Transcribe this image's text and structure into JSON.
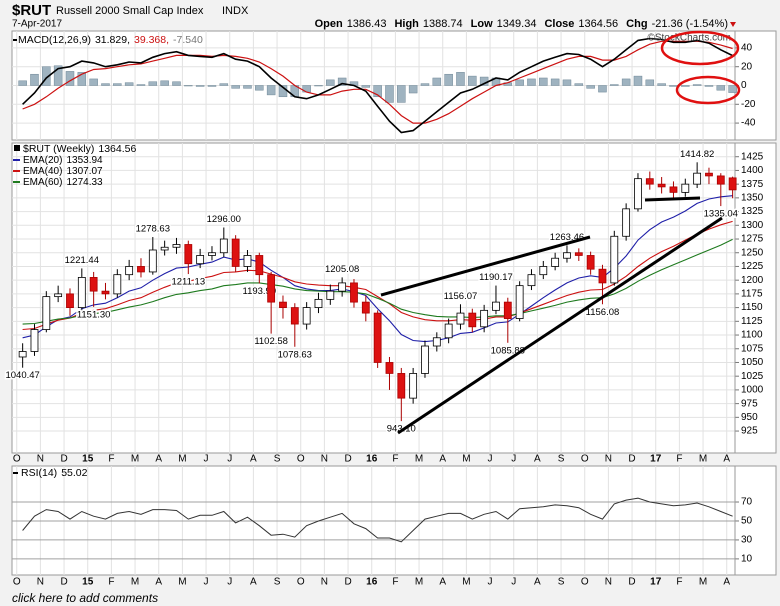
{
  "header": {
    "symbol": "$RUT",
    "name": "Russell 2000 Small Cap Index",
    "exchange": "INDX",
    "date": "7-Apr-2017",
    "quote": [
      {
        "label": "Open",
        "value": 1386.43
      },
      {
        "label": "High",
        "value": 1388.74
      },
      {
        "label": "Low",
        "value": 1349.34
      },
      {
        "label": "Close",
        "value": 1364.56
      },
      {
        "label": "Chg",
        "value": "-21.36 (-1.54%)"
      }
    ]
  },
  "watermark": "©StockCharts.com",
  "footer": {
    "link": "click here to add comments"
  },
  "chart_data": {
    "type": "candlestick",
    "grid": true,
    "xlim": [
      -0.2,
      30.35
    ],
    "xticks": [
      {
        "value": 0,
        "label": "O"
      },
      {
        "value": 1,
        "label": "N"
      },
      {
        "value": 2,
        "label": "D"
      },
      {
        "value": 3,
        "label": "15"
      },
      {
        "value": 4,
        "label": "F"
      },
      {
        "value": 5,
        "label": "M"
      },
      {
        "value": 6,
        "label": "A"
      },
      {
        "value": 7,
        "label": "M"
      },
      {
        "value": 8,
        "label": "J"
      },
      {
        "value": 9,
        "label": "J"
      },
      {
        "value": 10,
        "label": "A"
      },
      {
        "value": 11,
        "label": "S"
      },
      {
        "value": 12,
        "label": "O"
      },
      {
        "value": 13,
        "label": "N"
      },
      {
        "value": 14,
        "label": "D"
      },
      {
        "value": 15,
        "label": "16"
      },
      {
        "value": 16,
        "label": "F"
      },
      {
        "value": 17,
        "label": "M"
      },
      {
        "value": 18,
        "label": "A"
      },
      {
        "value": 19,
        "label": "M"
      },
      {
        "value": 20,
        "label": "J"
      },
      {
        "value": 21,
        "label": "J"
      },
      {
        "value": 22,
        "label": "A"
      },
      {
        "value": 23,
        "label": "S"
      },
      {
        "value": 24,
        "label": "O"
      },
      {
        "value": 25,
        "label": "N"
      },
      {
        "value": 26,
        "label": "D"
      },
      {
        "value": 27,
        "label": "17"
      },
      {
        "value": 28,
        "label": "F"
      },
      {
        "value": 29,
        "label": "M"
      },
      {
        "value": 30,
        "label": "A"
      }
    ],
    "x": [
      0.25,
      0.75,
      1.25,
      1.75,
      2.25,
      2.75,
      3.25,
      3.75,
      4.25,
      4.75,
      5.25,
      5.75,
      6.25,
      6.75,
      7.25,
      7.75,
      8.25,
      8.75,
      9.25,
      9.75,
      10.25,
      10.75,
      11.25,
      11.75,
      12.25,
      12.75,
      13.25,
      13.75,
      14.25,
      14.75,
      15.25,
      15.75,
      16.25,
      16.75,
      17.25,
      17.75,
      18.25,
      18.75,
      19.25,
      19.75,
      20.25,
      20.75,
      21.25,
      21.75,
      22.25,
      22.75,
      23.25,
      23.75,
      24.25,
      24.75,
      25.25,
      25.75,
      26.25,
      26.75,
      27.25,
      27.75,
      28.25,
      28.75,
      29.25,
      29.75,
      30.25
    ],
    "macd": {
      "legend": [
        "MACD(12,26,9)",
        "31.829,",
        "39.368,",
        "-7.540"
      ],
      "ylim": [
        -58,
        58
      ],
      "yticks": [
        40,
        20,
        0,
        -20,
        -40
      ],
      "line": {
        "color": "#000000",
        "values": [
          -20,
          -8,
          8,
          18,
          20,
          26,
          24,
          20,
          22,
          25,
          24,
          30,
          34,
          36,
          32,
          31,
          30,
          34,
          28,
          26,
          20,
          8,
          -2,
          -12,
          -14,
          -10,
          -4,
          2,
          0,
          -6,
          -22,
          -38,
          -50,
          -48,
          -38,
          -28,
          -18,
          -8,
          -4,
          2,
          8,
          6,
          14,
          20,
          26,
          30,
          34,
          33,
          28,
          20,
          28,
          38,
          48,
          50,
          49,
          46,
          46,
          48,
          45,
          38,
          31.829
        ]
      },
      "signal": {
        "color": "#cc1111",
        "values": [
          -25,
          -20,
          -12,
          -3,
          5,
          12,
          17,
          18,
          20,
          22,
          23,
          26,
          29,
          32,
          32,
          32,
          31,
          32,
          31,
          29,
          25,
          18,
          10,
          0,
          -7,
          -10,
          -10,
          -6,
          -4,
          -4,
          -10,
          -20,
          -32,
          -40,
          -40,
          -36,
          -30,
          -22,
          -14,
          -7,
          0,
          3,
          8,
          13,
          18,
          23,
          28,
          31,
          31,
          27,
          27,
          31,
          38,
          44,
          47,
          47,
          47,
          47,
          46,
          43,
          39.368
        ]
      },
      "histogram": {
        "color": "#9fb3c0",
        "values": [
          5,
          12,
          20,
          21,
          15,
          14,
          7,
          2,
          2,
          3,
          1,
          4,
          5,
          4,
          0,
          -1,
          -1,
          2,
          -3,
          -3,
          -5,
          -10,
          -12,
          -12,
          -7,
          0,
          6,
          8,
          4,
          -2,
          -12,
          -18,
          -18,
          -8,
          2,
          8,
          12,
          14,
          10,
          9,
          8,
          3,
          6,
          7,
          8,
          7,
          6,
          2,
          -3,
          -7,
          1,
          7,
          10,
          6,
          2,
          -1,
          -1,
          1,
          -1,
          -5,
          -7.54
        ]
      }
    },
    "price": {
      "title": "$RUT (Weekly)",
      "ylim": [
        885,
        1450
      ],
      "yticks": [
        925,
        950,
        975,
        1000,
        1025,
        1050,
        1075,
        1100,
        1125,
        1150,
        1175,
        1200,
        1225,
        1250,
        1275,
        1300,
        1325,
        1350,
        1375,
        1400,
        1425
      ],
      "up_color": "#ffffff",
      "down_color": "#dd1111",
      "open": [
        1060,
        1070,
        1110,
        1170,
        1175,
        1150,
        1205,
        1180,
        1175,
        1210,
        1225,
        1215,
        1255,
        1260,
        1265,
        1230,
        1245,
        1250,
        1275,
        1225,
        1245,
        1210,
        1160,
        1150,
        1120,
        1150,
        1165,
        1180,
        1195,
        1160,
        1140,
        1050,
        1030,
        985,
        1030,
        1080,
        1095,
        1120,
        1140,
        1115,
        1145,
        1160,
        1130,
        1190,
        1210,
        1225,
        1240,
        1250,
        1245,
        1220,
        1195,
        1280,
        1330,
        1385,
        1375,
        1370,
        1360,
        1375,
        1395,
        1390,
        1386.43
      ],
      "high": [
        1085,
        1120,
        1180,
        1190,
        1185,
        1221.44,
        1215,
        1195,
        1220,
        1237,
        1240,
        1278.63,
        1272,
        1277,
        1272,
        1257,
        1262,
        1296,
        1282,
        1255,
        1250,
        1215,
        1172,
        1158,
        1160,
        1177,
        1192,
        1205.08,
        1202,
        1172,
        1145,
        1060,
        1040,
        1040,
        1090,
        1105,
        1130,
        1156.07,
        1148,
        1155,
        1190.17,
        1168,
        1198,
        1220,
        1235,
        1250,
        1263.46,
        1258,
        1252,
        1228,
        1290,
        1340,
        1395,
        1398,
        1388,
        1380,
        1385,
        1414.82,
        1405,
        1395,
        1388.74
      ],
      "low": [
        1040.47,
        1062,
        1105,
        1160,
        1135,
        1145,
        1151.3,
        1165,
        1168,
        1200,
        1205,
        1210,
        1245,
        1248,
        1211.13,
        1222,
        1236,
        1242,
        1215,
        1215,
        1193.99,
        1102.58,
        1130,
        1078.63,
        1110,
        1140,
        1155,
        1170,
        1150,
        1125,
        1040,
        1000,
        943.1,
        975,
        1022,
        1070,
        1085,
        1110,
        1105,
        1105,
        1138,
        1085.88,
        1125,
        1182,
        1202,
        1218,
        1232,
        1235,
        1210,
        1156.08,
        1190,
        1272,
        1325,
        1365,
        1358,
        1350,
        1352,
        1368,
        1375,
        1335.04,
        1349.34
      ],
      "close": [
        1070,
        1110,
        1170,
        1175,
        1150,
        1205,
        1180,
        1175,
        1210,
        1225,
        1215,
        1255,
        1260,
        1265,
        1230,
        1245,
        1250,
        1275,
        1225,
        1245,
        1210,
        1160,
        1150,
        1120,
        1150,
        1165,
        1180,
        1195,
        1160,
        1140,
        1050,
        1030,
        985,
        1030,
        1080,
        1095,
        1120,
        1140,
        1115,
        1145,
        1160,
        1130,
        1190,
        1210,
        1225,
        1240,
        1250,
        1245,
        1220,
        1195,
        1280,
        1330,
        1385,
        1375,
        1370,
        1360,
        1375,
        1395,
        1390,
        1375,
        1364.56
      ],
      "high_labels": [
        null,
        null,
        null,
        null,
        null,
        "1221.44",
        null,
        null,
        null,
        null,
        null,
        "1278.63",
        null,
        null,
        null,
        null,
        null,
        "1296.00",
        null,
        null,
        null,
        null,
        null,
        null,
        null,
        null,
        null,
        "1205.08",
        null,
        null,
        null,
        null,
        null,
        null,
        null,
        null,
        null,
        "1156.07",
        null,
        null,
        "1190.17",
        null,
        null,
        null,
        null,
        null,
        "1263.46",
        null,
        null,
        null,
        null,
        null,
        null,
        null,
        null,
        null,
        null,
        "1414.82",
        null,
        null,
        null
      ],
      "low_labels": [
        "1040.47",
        null,
        null,
        null,
        null,
        null,
        "1151.30",
        null,
        null,
        null,
        null,
        null,
        null,
        null,
        "1211.13",
        null,
        null,
        null,
        null,
        null,
        "1193.99",
        "1102.58",
        null,
        "1078.63",
        null,
        null,
        null,
        null,
        null,
        null,
        null,
        null,
        "943.10",
        null,
        null,
        null,
        null,
        null,
        null,
        null,
        null,
        "1085.88",
        null,
        null,
        null,
        null,
        null,
        null,
        null,
        "1156.08",
        null,
        null,
        null,
        null,
        null,
        null,
        null,
        null,
        null,
        "1335.04",
        null
      ],
      "series": [
        {
          "name": "EMA(20)",
          "color": "#1f1fa8",
          "values": [
            1095,
            1100,
            1115,
            1128,
            1133,
            1148,
            1155,
            1158,
            1168,
            1180,
            1186,
            1200,
            1212,
            1222,
            1224,
            1229,
            1233,
            1242,
            1237,
            1239,
            1233,
            1218,
            1205,
            1190,
            1184,
            1181,
            1181,
            1184,
            1179,
            1172,
            1148,
            1126,
            1101,
            1090,
            1088,
            1090,
            1095,
            1103,
            1105,
            1113,
            1122,
            1124,
            1138,
            1153,
            1168,
            1182,
            1195,
            1204,
            1208,
            1205,
            1222,
            1244,
            1273,
            1292,
            1306,
            1315,
            1326,
            1340,
            1348,
            1352,
            1353.94
          ]
        },
        {
          "name": "EMA(40)",
          "color": "#cc1111",
          "values": [
            1110,
            1112,
            1120,
            1127,
            1131,
            1140,
            1145,
            1148,
            1155,
            1163,
            1168,
            1178,
            1187,
            1195,
            1198,
            1203,
            1207,
            1214,
            1215,
            1218,
            1217,
            1211,
            1205,
            1197,
            1193,
            1191,
            1190,
            1190,
            1187,
            1183,
            1170,
            1157,
            1141,
            1133,
            1128,
            1126,
            1126,
            1128,
            1127,
            1129,
            1133,
            1133,
            1140,
            1148,
            1156,
            1164,
            1172,
            1178,
            1182,
            1183,
            1193,
            1207,
            1225,
            1240,
            1252,
            1262,
            1273,
            1284,
            1293,
            1301,
            1307.07
          ]
        },
        {
          "name": "EMA(60)",
          "color": "#1e7a1e",
          "values": [
            1120,
            1121,
            1125,
            1129,
            1131,
            1136,
            1139,
            1141,
            1146,
            1151,
            1155,
            1161,
            1168,
            1174,
            1177,
            1181,
            1184,
            1190,
            1192,
            1195,
            1195,
            1192,
            1189,
            1184,
            1181,
            1180,
            1179,
            1179,
            1178,
            1175,
            1167,
            1158,
            1147,
            1141,
            1137,
            1134,
            1133,
            1133,
            1132,
            1133,
            1135,
            1135,
            1139,
            1144,
            1149,
            1154,
            1160,
            1164,
            1167,
            1168,
            1175,
            1185,
            1198,
            1209,
            1219,
            1228,
            1237,
            1246,
            1255,
            1264,
            1274.33
          ]
        }
      ]
    },
    "rsi": {
      "name": "RSI(14)",
      "color": "#333333",
      "ylim": [
        -7,
        108
      ],
      "yticks": [
        70,
        50,
        30,
        10
      ],
      "values": [
        40,
        55,
        62,
        60,
        52,
        60,
        55,
        52,
        58,
        60,
        57,
        62,
        62,
        61,
        52,
        56,
        56,
        60,
        48,
        54,
        45,
        35,
        36,
        33,
        45,
        50,
        54,
        58,
        47,
        42,
        32,
        32,
        28,
        40,
        52,
        55,
        58,
        58,
        52,
        57,
        60,
        52,
        63,
        64,
        65,
        67,
        66,
        64,
        57,
        52,
        68,
        72,
        74,
        70,
        68,
        66,
        67,
        69,
        65,
        60,
        55.02
      ]
    }
  }
}
